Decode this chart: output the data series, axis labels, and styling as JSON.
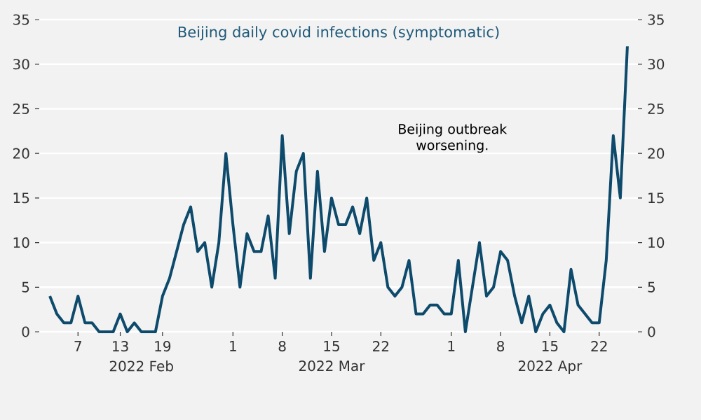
{
  "chart_data": {
    "type": "line",
    "title": "Beijing daily covid infections (symptomatic)",
    "annotations": [
      "Beijing outbreak worsening."
    ],
    "x": [
      "2022-02-03",
      "2022-02-04",
      "2022-02-05",
      "2022-02-06",
      "2022-02-07",
      "2022-02-08",
      "2022-02-09",
      "2022-02-10",
      "2022-02-11",
      "2022-02-12",
      "2022-02-13",
      "2022-02-14",
      "2022-02-15",
      "2022-02-16",
      "2022-02-17",
      "2022-02-18",
      "2022-02-19",
      "2022-02-20",
      "2022-02-21",
      "2022-02-22",
      "2022-02-23",
      "2022-02-24",
      "2022-02-25",
      "2022-02-26",
      "2022-02-27",
      "2022-02-28",
      "2022-03-01",
      "2022-03-02",
      "2022-03-03",
      "2022-03-04",
      "2022-03-05",
      "2022-03-06",
      "2022-03-07",
      "2022-03-08",
      "2022-03-09",
      "2022-03-10",
      "2022-03-11",
      "2022-03-12",
      "2022-03-13",
      "2022-03-14",
      "2022-03-15",
      "2022-03-16",
      "2022-03-17",
      "2022-03-18",
      "2022-03-19",
      "2022-03-20",
      "2022-03-21",
      "2022-03-22",
      "2022-03-23",
      "2022-03-24",
      "2022-03-25",
      "2022-03-26",
      "2022-03-27",
      "2022-03-28",
      "2022-03-29",
      "2022-03-30",
      "2022-03-31",
      "2022-04-01",
      "2022-04-02",
      "2022-04-03",
      "2022-04-04",
      "2022-04-05",
      "2022-04-06",
      "2022-04-07",
      "2022-04-08",
      "2022-04-09",
      "2022-04-10",
      "2022-04-11",
      "2022-04-12",
      "2022-04-13",
      "2022-04-14",
      "2022-04-15",
      "2022-04-16",
      "2022-04-17",
      "2022-04-18",
      "2022-04-19",
      "2022-04-20",
      "2022-04-21",
      "2022-04-22",
      "2022-04-23",
      "2022-04-24",
      "2022-04-25",
      "2022-04-26"
    ],
    "series": [
      {
        "color": "#0d4a6b",
        "values": [
          4,
          2,
          1,
          1,
          4,
          1,
          1,
          0,
          0,
          0,
          2,
          0,
          1,
          0,
          0,
          0,
          4,
          6,
          9,
          12,
          14,
          9,
          10,
          5,
          10,
          20,
          12,
          5,
          11,
          9,
          9,
          13,
          6,
          22,
          11,
          18,
          20,
          6,
          18,
          9,
          15,
          12,
          12,
          14,
          11,
          15,
          8,
          10,
          5,
          4,
          5,
          8,
          2,
          2,
          3,
          3,
          2,
          2,
          8,
          0,
          5,
          10,
          4,
          5,
          9,
          8,
          4,
          1,
          4,
          0,
          2,
          3,
          1,
          0,
          7,
          3,
          2,
          1,
          1,
          8,
          22,
          15,
          32
        ]
      }
    ],
    "xlim": [
      "2022-02-01T12:00",
      "2022-04-27T12:00"
    ],
    "xticks": [
      {
        "value": "2022-02-07",
        "label": "7"
      },
      {
        "value": "2022-02-13",
        "label": "13"
      },
      {
        "value": "2022-02-19",
        "label": "19"
      },
      {
        "value": "2022-03-01",
        "label": "1"
      },
      {
        "value": "2022-03-08",
        "label": "8"
      },
      {
        "value": "2022-03-15",
        "label": "15"
      },
      {
        "value": "2022-03-22",
        "label": "22"
      },
      {
        "value": "2022-04-01",
        "label": "1"
      },
      {
        "value": "2022-04-08",
        "label": "8"
      },
      {
        "value": "2022-04-15",
        "label": "15"
      },
      {
        "value": "2022-04-22",
        "label": "22"
      }
    ],
    "x2lim": [
      "2022-02-01T12:00",
      "2022-04-27T12:00"
    ],
    "x2ticks": [
      {
        "value": "2022-02-16",
        "label": "2022 Feb"
      },
      {
        "value": "2022-03-15",
        "label": "2022 Mar"
      },
      {
        "value": "2022-04-15",
        "label": "2022 Apr"
      }
    ],
    "ylim": [
      0,
      35
    ],
    "yticks": [
      0,
      5,
      10,
      15,
      20,
      25,
      30,
      35
    ],
    "y2lim": [
      0,
      35
    ],
    "y2ticks": [
      0,
      5,
      10,
      15,
      20,
      25,
      30,
      35
    ],
    "grid": "y",
    "marker": "none",
    "line_style": "solid"
  }
}
